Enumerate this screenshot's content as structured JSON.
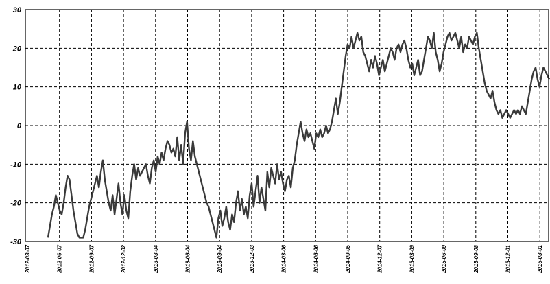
{
  "chart_data": {
    "type": "line",
    "title": "",
    "xlabel": "",
    "ylabel": "",
    "ylim": [
      -30,
      30
    ],
    "y_ticks": [
      "30",
      "20",
      "10",
      "0",
      "-10",
      "-20",
      "-30"
    ],
    "x_tick_labels": [
      "2012-03-07",
      "2012-06-07",
      "2012-09-07",
      "2012-12-02",
      "2013-03-04",
      "2013-06-04",
      "2013-09-04",
      "2013-12-03",
      "2014-03-06",
      "2014-06-06",
      "2014-09-05",
      "2014-12-07",
      "2015-03-09",
      "2015-06-09",
      "2015-09-08",
      "2015-12-01",
      "2016-03-01"
    ],
    "grid": true,
    "grid_style": "dashed",
    "line_color": "#3a3a3a",
    "series": [
      {
        "values": [
          -29,
          -26,
          -23,
          -21,
          -18,
          -20,
          -22,
          -23,
          -20,
          -16,
          -13,
          -14,
          -18,
          -22,
          -25,
          -28,
          -29,
          -29,
          -29,
          -27,
          -24,
          -21,
          -19,
          -17,
          -15,
          -13,
          -16,
          -12,
          -9,
          -14,
          -17,
          -20,
          -22,
          -18,
          -23,
          -19,
          -15,
          -20,
          -23,
          -18,
          -22,
          -24,
          -17,
          -13,
          -10,
          -14,
          -11,
          -13,
          -12,
          -11,
          -10,
          -13,
          -15,
          -11,
          -9,
          -12,
          -8,
          -10,
          -7,
          -9,
          -6,
          -4,
          -5,
          -7,
          -6,
          -8,
          -3,
          -9,
          -5,
          -10,
          -2,
          1,
          -6,
          -9,
          -4,
          -8,
          -10,
          -12,
          -14,
          -16,
          -18,
          -20,
          -21,
          -23,
          -25,
          -27,
          -29,
          -24,
          -22,
          -26,
          -24,
          -21,
          -25,
          -27,
          -23,
          -25,
          -20,
          -17,
          -22,
          -19,
          -23,
          -21,
          -24,
          -18,
          -15,
          -21,
          -17,
          -13,
          -20,
          -16,
          -19,
          -22,
          -12,
          -16,
          -11,
          -13,
          -15,
          -10,
          -14,
          -12,
          -15,
          -17,
          -14,
          -13,
          -16,
          -11,
          -9,
          -5,
          -2,
          1,
          -2,
          -4,
          -1,
          -3,
          -2,
          -4,
          -6,
          -2,
          -3,
          -1,
          -3,
          -2,
          0,
          -2,
          -1,
          1,
          4,
          7,
          3,
          6,
          10,
          14,
          18,
          21,
          20,
          23,
          20,
          22,
          24,
          22,
          23,
          19,
          18,
          16,
          14,
          17,
          15,
          18,
          16,
          13,
          15,
          17,
          14,
          16,
          18,
          20,
          19,
          17,
          20,
          21,
          19,
          21,
          22,
          20,
          17,
          15,
          16,
          13,
          15,
          17,
          13,
          14,
          17,
          20,
          23,
          22,
          20,
          24,
          19,
          17,
          14,
          16,
          19,
          21,
          23,
          24,
          22,
          23,
          24,
          22,
          20,
          23,
          19,
          21,
          20,
          23,
          22,
          21,
          23,
          24,
          20,
          17,
          14,
          11,
          9,
          8,
          7,
          9,
          6,
          4,
          3,
          4,
          2,
          3,
          4,
          3,
          2,
          3,
          4,
          3,
          4,
          3,
          5,
          4,
          3,
          6,
          9,
          12,
          14,
          15,
          12,
          10,
          13,
          15,
          14,
          13,
          12
        ]
      }
    ]
  }
}
